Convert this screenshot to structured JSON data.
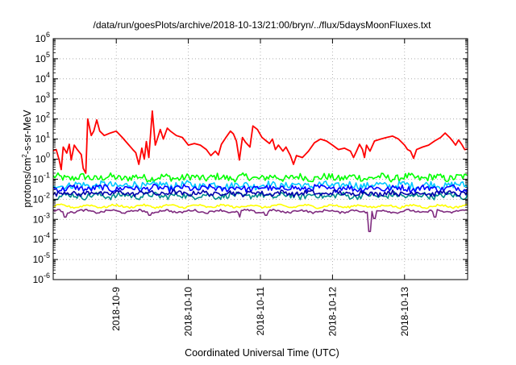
{
  "chart_data": {
    "type": "line",
    "title": "/data/run/goesPlots/archive/2018-10-13/21:00/bryn/../flux/5daysMoonFluxes.txt",
    "xlabel": "Coordinated Universal Time (UTC)",
    "ylabel": "protons/cm²-s-sr-MeV",
    "x_tick_labels": [
      "2018-10-9",
      "2018-10-10",
      "2018-10-11",
      "2018-10-12",
      "2018-10-13"
    ],
    "x_ticks": [
      "2018-10-09T00:00",
      "2018-10-10T00:00",
      "2018-10-11T00:00",
      "2018-10-12T00:00",
      "2018-10-13T00:00"
    ],
    "xlim": [
      "2018-10-08T03:00",
      "2018-10-13T21:00"
    ],
    "y_scale": "log",
    "y_tick_exponents": [
      -6,
      -5,
      -4,
      -3,
      -2,
      -1,
      0,
      1,
      2,
      3,
      4,
      5,
      6
    ],
    "y_tick_labels": [
      "10-6",
      "10-5",
      "10-4",
      "10-3",
      "10-2",
      "10-1",
      "100",
      "101",
      "102",
      "103",
      "104",
      "105",
      "106"
    ],
    "ylim": [
      1e-06,
      1000000.0
    ],
    "grid": true,
    "series": [
      {
        "color": "#ff0000",
        "points": [
          [
            "2018-10-08T03:00",
            2.6
          ],
          [
            "2018-10-08T04:00",
            3.0
          ],
          [
            "2018-10-08T05:00",
            0.9
          ],
          [
            "2018-10-08T05:40",
            0.3
          ],
          [
            "2018-10-08T06:20",
            4.0
          ],
          [
            "2018-10-08T07:30",
            2.0
          ],
          [
            "2018-10-08T08:20",
            5.5
          ],
          [
            "2018-10-08T09:00",
            0.9
          ],
          [
            "2018-10-08T10:00",
            5.0
          ],
          [
            "2018-10-08T11:00",
            3.0
          ],
          [
            "2018-10-08T12:20",
            1.7
          ],
          [
            "2018-10-08T13:00",
            0.35
          ],
          [
            "2018-10-08T13:50",
            0.2
          ],
          [
            "2018-10-08T14:30",
            100
          ],
          [
            "2018-10-08T15:40",
            15
          ],
          [
            "2018-10-08T16:30",
            25
          ],
          [
            "2018-10-08T17:30",
            90
          ],
          [
            "2018-10-08T18:30",
            25
          ],
          [
            "2018-10-08T20:00",
            15
          ],
          [
            "2018-10-08T22:00",
            20
          ],
          [
            "2018-10-09T00:00",
            25
          ],
          [
            "2018-10-09T02:00",
            12
          ],
          [
            "2018-10-09T04:00",
            5.5
          ],
          [
            "2018-10-09T05:30",
            3.0
          ],
          [
            "2018-10-09T06:30",
            2.1
          ],
          [
            "2018-10-09T07:30",
            0.55
          ],
          [
            "2018-10-09T08:30",
            3.5
          ],
          [
            "2018-10-09T09:20",
            1.0
          ],
          [
            "2018-10-09T10:00",
            7.5
          ],
          [
            "2018-10-09T10:50",
            1.2
          ],
          [
            "2018-10-09T12:00",
            250
          ],
          [
            "2018-10-09T13:00",
            5.0
          ],
          [
            "2018-10-09T13:40",
            10
          ],
          [
            "2018-10-09T14:40",
            30
          ],
          [
            "2018-10-09T15:40",
            10
          ],
          [
            "2018-10-09T17:00",
            35
          ],
          [
            "2018-10-09T18:00",
            25
          ],
          [
            "2018-10-09T20:00",
            15
          ],
          [
            "2018-10-09T22:00",
            12
          ],
          [
            "2018-10-10T00:00",
            5.0
          ],
          [
            "2018-10-10T02:00",
            6.0
          ],
          [
            "2018-10-10T04:00",
            5.0
          ],
          [
            "2018-10-10T06:00",
            3.0
          ],
          [
            "2018-10-10T07:30",
            1.5
          ],
          [
            "2018-10-10T09:00",
            2.5
          ],
          [
            "2018-10-10T10:00",
            1.6
          ],
          [
            "2018-10-10T11:00",
            5.5
          ],
          [
            "2018-10-10T12:30",
            12
          ],
          [
            "2018-10-10T14:00",
            25
          ],
          [
            "2018-10-10T15:00",
            18
          ],
          [
            "2018-10-10T16:00",
            8.0
          ],
          [
            "2018-10-10T17:00",
            0.9
          ],
          [
            "2018-10-10T18:00",
            12
          ],
          [
            "2018-10-10T19:00",
            7.0
          ],
          [
            "2018-10-10T20:30",
            4.0
          ],
          [
            "2018-10-10T21:30",
            45
          ],
          [
            "2018-10-10T23:00",
            30
          ],
          [
            "2018-10-11T00:30",
            12
          ],
          [
            "2018-10-11T02:00",
            8.0
          ],
          [
            "2018-10-11T03:00",
            6.0
          ],
          [
            "2018-10-11T04:00",
            10
          ],
          [
            "2018-10-11T05:00",
            3.0
          ],
          [
            "2018-10-11T06:00",
            5.0
          ],
          [
            "2018-10-11T07:30",
            2.5
          ],
          [
            "2018-10-11T08:30",
            4.0
          ],
          [
            "2018-10-11T10:00",
            1.5
          ],
          [
            "2018-10-11T11:00",
            0.55
          ],
          [
            "2018-10-11T12:00",
            1.5
          ],
          [
            "2018-10-11T14:00",
            1.2
          ],
          [
            "2018-10-11T16:00",
            2.5
          ],
          [
            "2018-10-11T18:00",
            6.5
          ],
          [
            "2018-10-11T20:00",
            10
          ],
          [
            "2018-10-11T22:00",
            8.0
          ],
          [
            "2018-10-12T00:00",
            5.0
          ],
          [
            "2018-10-12T02:00",
            3.0
          ],
          [
            "2018-10-12T04:00",
            3.5
          ],
          [
            "2018-10-12T06:00",
            2.5
          ],
          [
            "2018-10-12T07:00",
            1.2
          ],
          [
            "2018-10-12T08:00",
            2.5
          ],
          [
            "2018-10-12T09:00",
            5.5
          ],
          [
            "2018-10-12T10:00",
            3.0
          ],
          [
            "2018-10-12T10:40",
            1.2
          ],
          [
            "2018-10-12T11:20",
            5.0
          ],
          [
            "2018-10-12T12:30",
            2.5
          ],
          [
            "2018-10-12T14:00",
            8.0
          ],
          [
            "2018-10-12T16:00",
            10
          ],
          [
            "2018-10-12T18:00",
            12
          ],
          [
            "2018-10-12T20:00",
            14
          ],
          [
            "2018-10-12T22:00",
            10
          ],
          [
            "2018-10-13T00:00",
            5.0
          ],
          [
            "2018-10-13T01:00",
            3.0
          ],
          [
            "2018-10-13T02:00",
            2.5
          ],
          [
            "2018-10-13T03:00",
            1.1
          ],
          [
            "2018-10-13T04:00",
            3.0
          ],
          [
            "2018-10-13T06:00",
            4.0
          ],
          [
            "2018-10-13T08:00",
            5.0
          ],
          [
            "2018-10-13T10:00",
            8.0
          ],
          [
            "2018-10-13T12:00",
            12
          ],
          [
            "2018-10-13T13:30",
            20
          ],
          [
            "2018-10-13T15:00",
            12
          ],
          [
            "2018-10-13T16:00",
            8.0
          ],
          [
            "2018-10-13T17:00",
            5.0
          ],
          [
            "2018-10-13T18:00",
            9.0
          ],
          [
            "2018-10-13T19:00",
            5.5
          ],
          [
            "2018-10-13T20:00",
            3.0
          ],
          [
            "2018-10-13T21:00",
            3.2
          ]
        ]
      },
      {
        "color": "#00ff00",
        "level": 0.12,
        "spread": 0.18,
        "dips": []
      },
      {
        "color": "#00c8ff",
        "level": 0.05,
        "spread": 0.18,
        "dips": []
      },
      {
        "color": "#0000ff",
        "level": 0.035,
        "spread": 0.15,
        "dips": []
      },
      {
        "color": "#008b8b",
        "level": 0.015,
        "spread": 0.15,
        "dips": []
      },
      {
        "color": "#0000aa",
        "level": 0.02,
        "spread": 0.12,
        "dips": []
      },
      {
        "color": "#ffff00",
        "level": 0.0045,
        "spread": 0.05,
        "dips": []
      },
      {
        "color": "#7f2b7f",
        "level": 0.0025,
        "spread": 0.05,
        "dips": [
          [
            "2018-10-08T07:00",
            0.0013
          ],
          [
            "2018-10-09T11:00",
            0.0016
          ],
          [
            "2018-10-10T17:00",
            0.0013
          ],
          [
            "2018-10-11T02:00",
            0.0016
          ],
          [
            "2018-10-12T12:30",
            0.00025
          ],
          [
            "2018-10-12T14:00",
            0.0011
          ],
          [
            "2018-10-13T10:00",
            0.0013
          ]
        ]
      }
    ]
  }
}
